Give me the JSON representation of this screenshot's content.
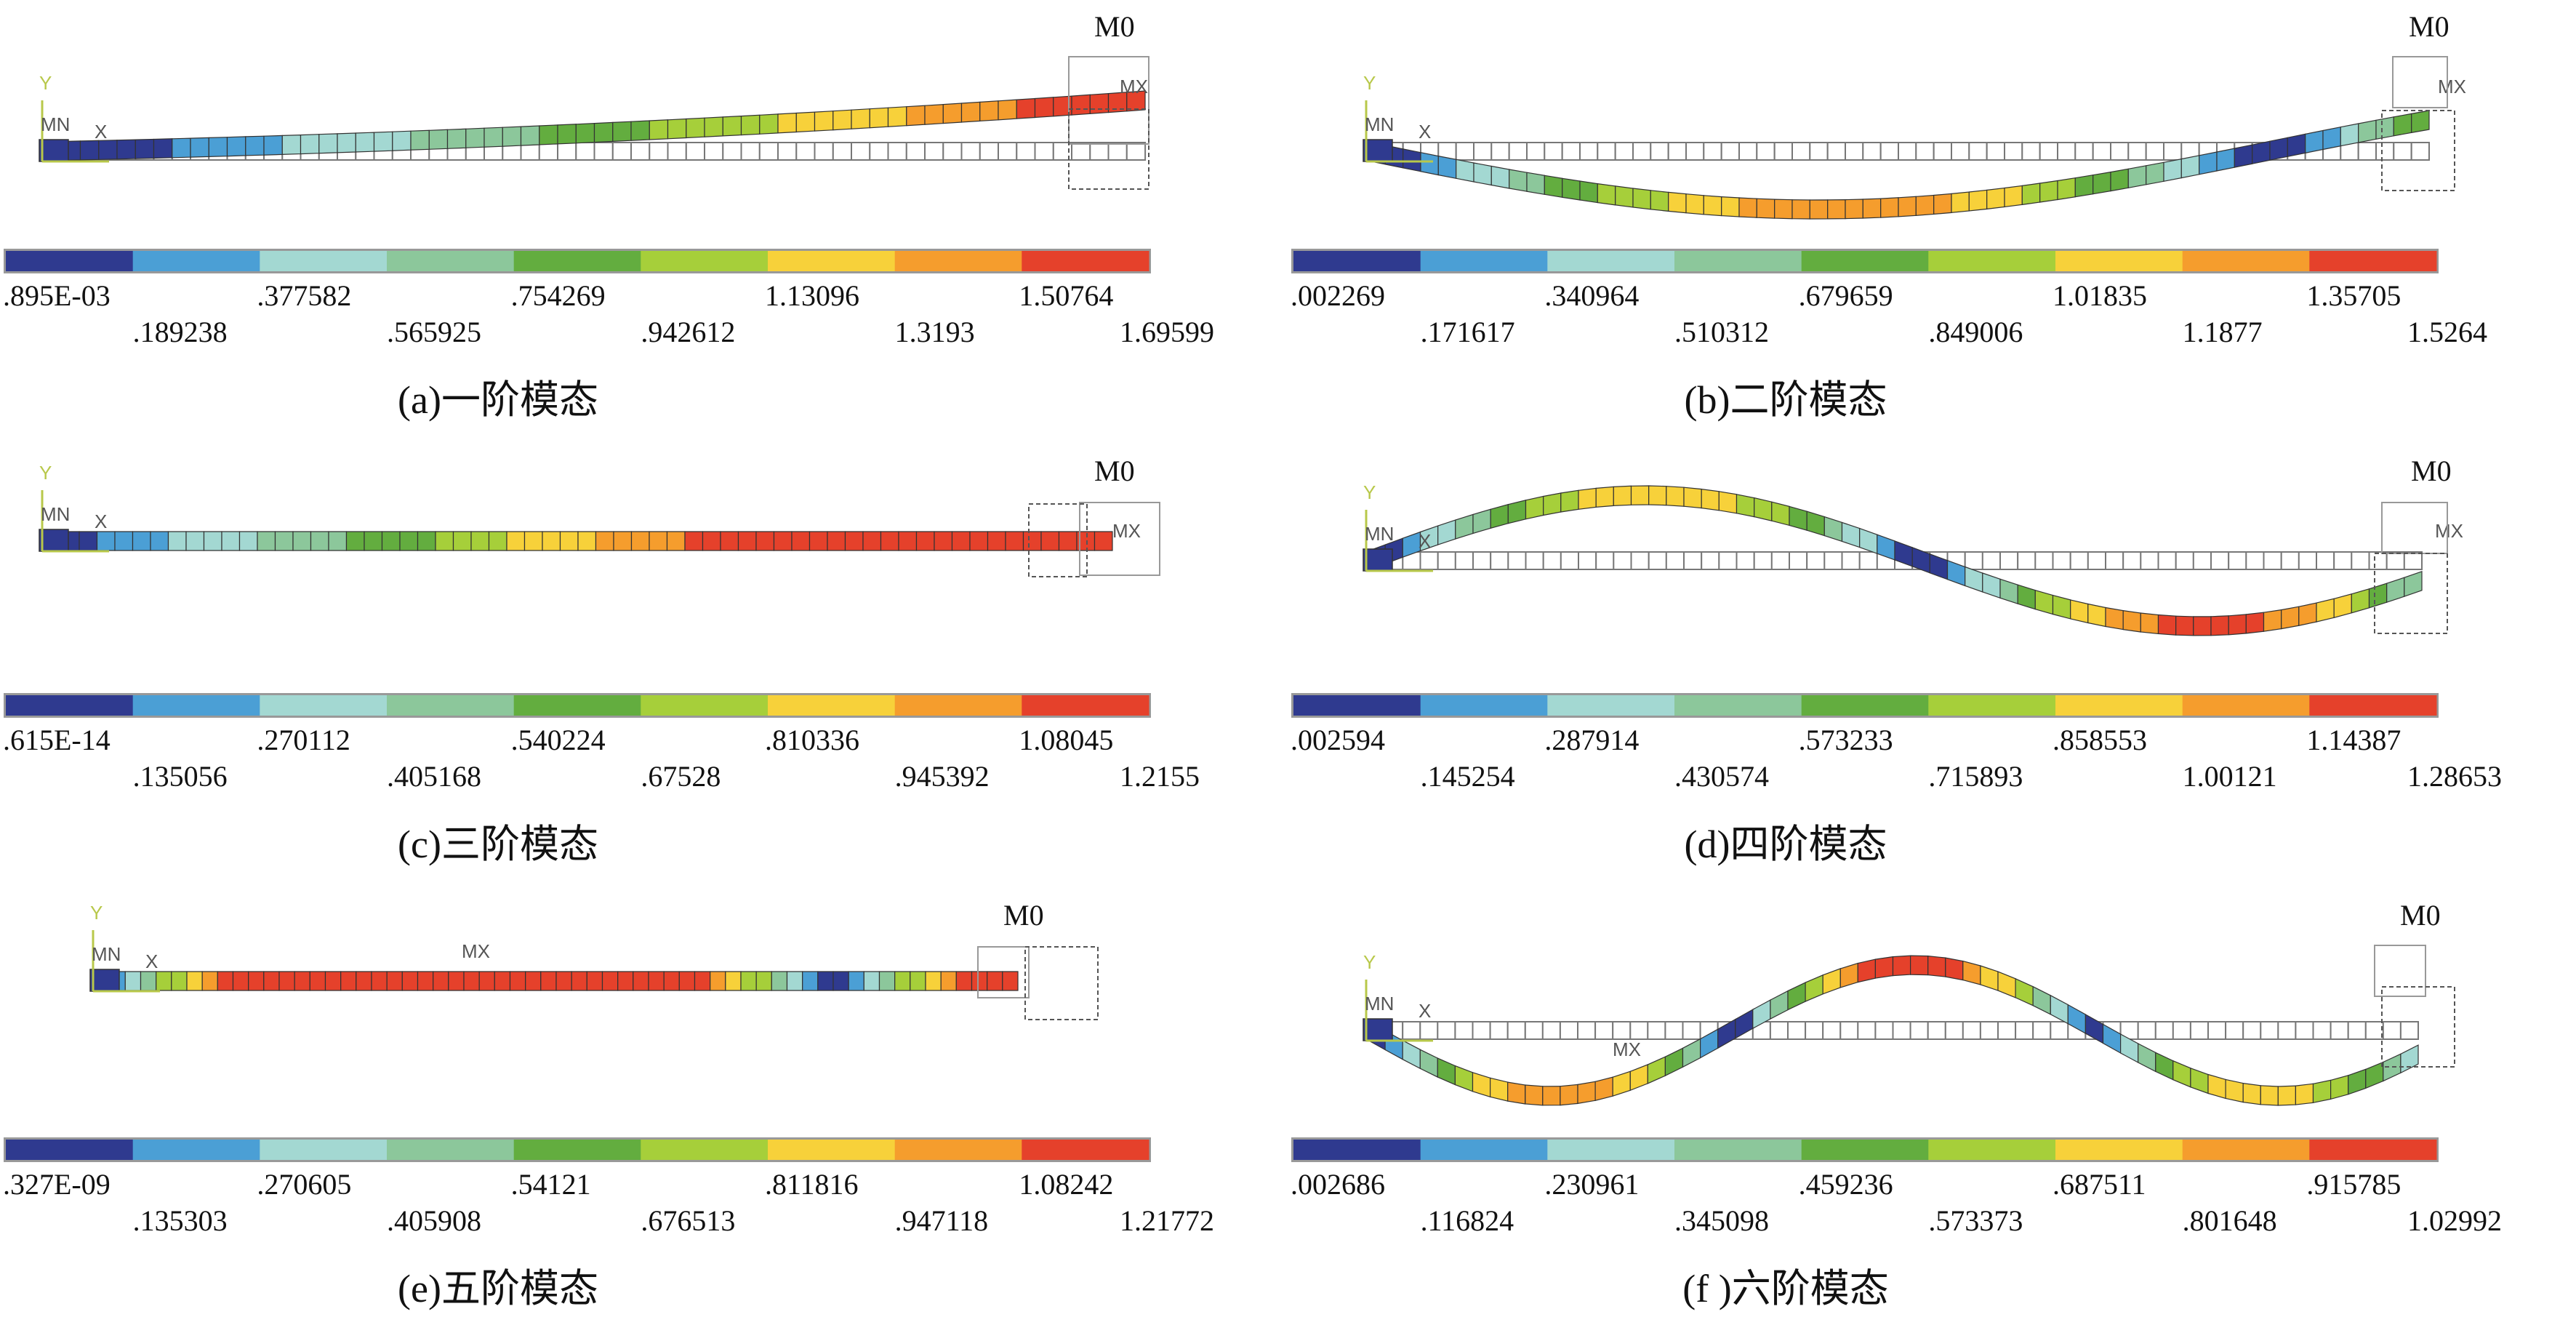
{
  "colors": [
    "#2f3a8f",
    "#4b9fd5",
    "#a3d8d2",
    "#8cc79b",
    "#63ad3f",
    "#a6cf3a",
    "#f7d13a",
    "#f59d2d",
    "#e5412b"
  ],
  "panels": [
    {
      "caption": "(a)一阶模态",
      "top_tag": "M0",
      "mx_tag": "MX",
      "mn_tag": "MN",
      "x_tag": "X",
      "y_tag": "Y",
      "shape": "mode1",
      "ticks_top": [
        ".895E-03",
        ".377582",
        ".754269",
        "1.13096",
        "1.50764"
      ],
      "ticks_bottom": [
        ".189238",
        ".565925",
        ".942612",
        "1.3193",
        "1.69599"
      ]
    },
    {
      "caption": "(b)二阶模态",
      "top_tag": "M0",
      "mx_tag": "MX",
      "mn_tag": "MN",
      "x_tag": "X",
      "y_tag": "Y",
      "shape": "mode2",
      "ticks_top": [
        ".002269",
        ".340964",
        ".679659",
        "1.01835",
        "1.35705"
      ],
      "ticks_bottom": [
        ".171617",
        ".510312",
        ".849006",
        "1.1877",
        "1.5264"
      ]
    },
    {
      "caption": "(c)三阶模态",
      "top_tag": "M0",
      "mx_tag": "MX",
      "mn_tag": "MN",
      "x_tag": "X",
      "y_tag": "Y",
      "shape": "mode3",
      "ticks_top": [
        ".615E-14",
        ".270112",
        ".540224",
        ".810336",
        "1.08045"
      ],
      "ticks_bottom": [
        ".135056",
        ".405168",
        ".67528",
        ".945392",
        "1.2155"
      ]
    },
    {
      "caption": "(d)四阶模态",
      "top_tag": "M0",
      "mx_tag": "MX",
      "mn_tag": "MN",
      "x_tag": "X",
      "y_tag": "Y",
      "shape": "mode4",
      "ticks_top": [
        ".002594",
        ".287914",
        ".573233",
        ".858553",
        "1.14387"
      ],
      "ticks_bottom": [
        ".145254",
        ".430574",
        ".715893",
        "1.00121",
        "1.28653"
      ]
    },
    {
      "caption": "(e)五阶模态",
      "top_tag": "M0",
      "mx_tag": "MX",
      "mn_tag": "MN",
      "x_tag": "X",
      "y_tag": "Y",
      "shape": "mode5",
      "ticks_top": [
        ".327E-09",
        ".270605",
        ".54121",
        ".811816",
        "1.08242"
      ],
      "ticks_bottom": [
        ".135303",
        ".405908",
        ".676513",
        ".947118",
        "1.21772"
      ]
    },
    {
      "caption": "(f )六阶模态",
      "top_tag": "M0",
      "mx_tag": "MX",
      "mn_tag": "MN",
      "x_tag": "X",
      "y_tag": "Y",
      "shape": "mode6",
      "ticks_top": [
        ".002686",
        ".230961",
        ".459236",
        ".687511",
        ".915785"
      ],
      "ticks_bottom": [
        ".116824",
        ".345098",
        ".573373",
        ".801648",
        "1.02992"
      ]
    }
  ]
}
